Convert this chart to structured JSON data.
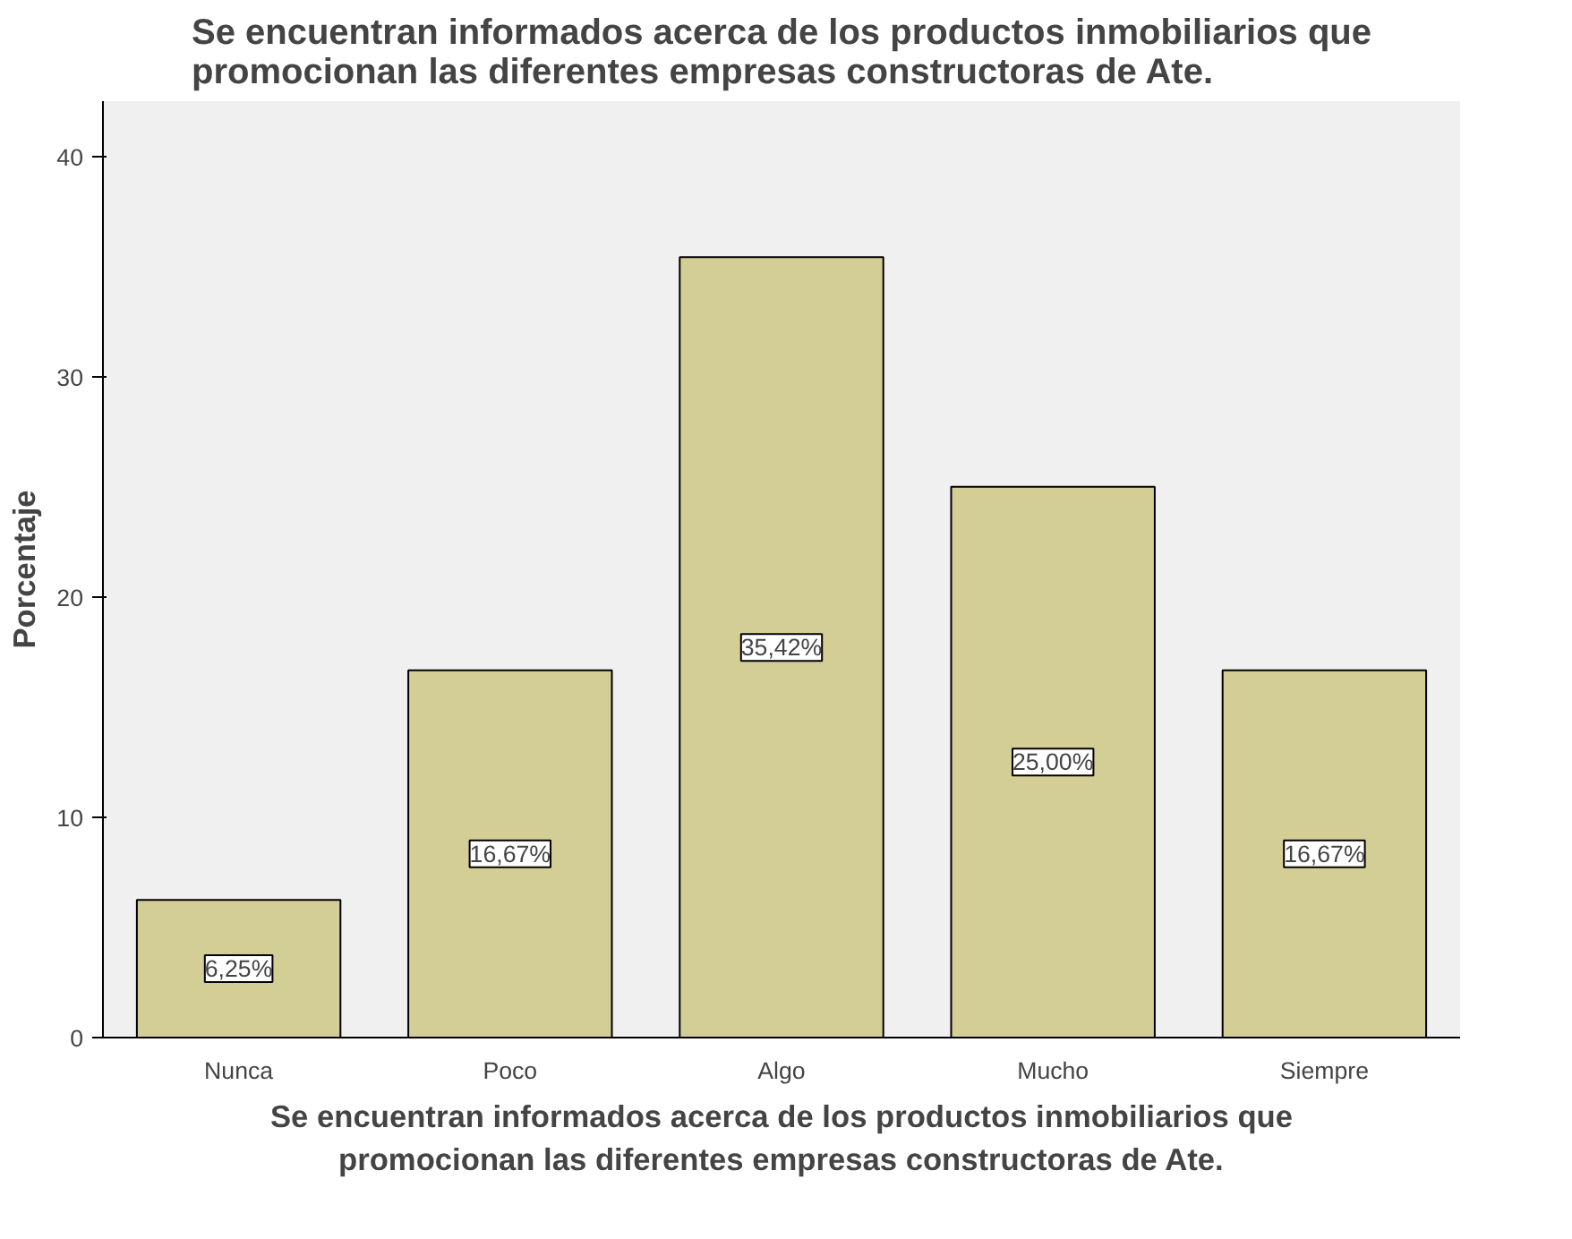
{
  "chart_data": {
    "type": "bar",
    "title": "Se encuentran informados acerca de los productos inmobiliarios que promocionan las diferentes empresas constructoras de Ate.",
    "xlabel": "Se encuentran informados acerca de los productos inmobiliarios que promocionan las diferentes empresas constructoras de Ate.",
    "ylabel": "Porcentaje",
    "categories": [
      "Nunca",
      "Poco",
      "Algo",
      "Mucho",
      "Siempre"
    ],
    "values": [
      6.25,
      16.67,
      35.42,
      25.0,
      16.67
    ],
    "value_labels": [
      "6,25%",
      "16,67%",
      "35,42%",
      "25,00%",
      "16,67%"
    ],
    "color": "#d3ce96",
    "ylim": [
      0,
      42.5
    ],
    "yticks": [
      0,
      10,
      20,
      30,
      40
    ],
    "grid": false
  }
}
